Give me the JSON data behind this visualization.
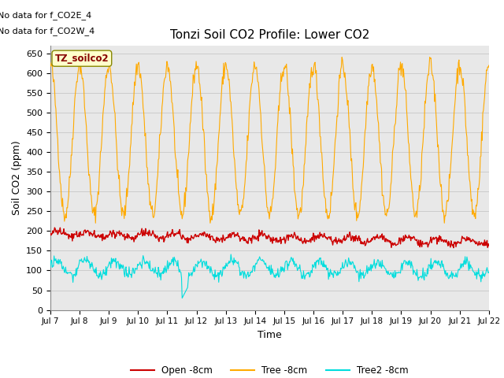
{
  "title": "Tonzi Soil CO2 Profile: Lower CO2",
  "ylabel": "Soil CO2 (ppm)",
  "xlabel": "Time",
  "no_data_text_1": "No data for f_CO2E_4",
  "no_data_text_2": "No data for f_CO2W_4",
  "site_label": "TZ_soilco2",
  "ylim": [
    0,
    670
  ],
  "yticks": [
    0,
    50,
    100,
    150,
    200,
    250,
    300,
    350,
    400,
    450,
    500,
    550,
    600,
    650
  ],
  "xtick_labels": [
    "Jul 7",
    "Jul 8",
    "Jul 9",
    "Jul 10",
    "Jul 11",
    "Jul 12",
    "Jul 13",
    "Jul 14",
    "Jul 15",
    "Jul 16",
    "Jul 17",
    "Jul 18",
    "Jul 19",
    "Jul 20",
    "Jul 21",
    "Jul 22"
  ],
  "colors": {
    "open": "#cc0000",
    "tree": "#ffaa00",
    "tree2": "#00dddd",
    "site_box_bg": "#ffffcc",
    "site_box_border": "#888800",
    "site_label_color": "#880000",
    "grid_color": "#cccccc",
    "bg_color": "#e8e8e8"
  },
  "legend": [
    {
      "label": "Open -8cm",
      "color": "#cc0000"
    },
    {
      "label": "Tree -8cm",
      "color": "#ffaa00"
    },
    {
      "label": "Tree2 -8cm",
      "color": "#00dddd"
    }
  ],
  "figsize": [
    6.4,
    4.8
  ],
  "dpi": 100
}
